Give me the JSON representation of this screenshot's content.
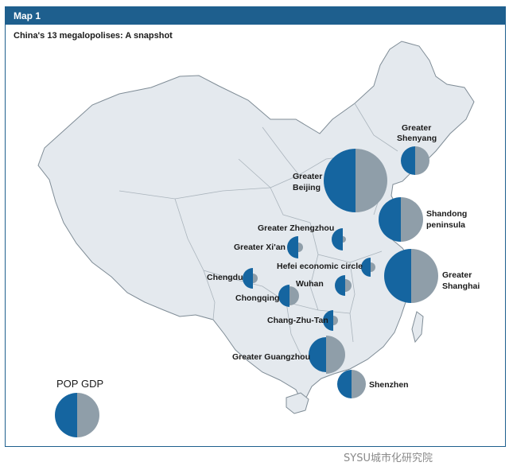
{
  "header": {
    "title": "Map 1",
    "subtitle": "China's 13 megalopolises: A snapshot"
  },
  "colors": {
    "pop": "#1565a0",
    "gdp": "#8f9ea9",
    "land": "#e4e9ee",
    "border": "#9aa6b0",
    "header": "#1e5f8e"
  },
  "legend": {
    "pop_label": "POP",
    "gdp_label": "GDP"
  },
  "regions": [
    {
      "id": "greater-shenyang",
      "label_lines": [
        "Greater",
        "Shenyang"
      ]
    },
    {
      "id": "greater-beijing",
      "label_lines": [
        "Greater",
        "Beijing"
      ]
    },
    {
      "id": "shandong-peninsula",
      "label_lines": [
        "Shandong",
        "peninsula"
      ]
    },
    {
      "id": "greater-zhengzhou",
      "label_lines": [
        "Greater Zhengzhou"
      ]
    },
    {
      "id": "greater-xian",
      "label_lines": [
        "Greater Xi'an"
      ]
    },
    {
      "id": "hefei-economic-circle",
      "label_lines": [
        "Hefei economic circle"
      ]
    },
    {
      "id": "greater-shanghai",
      "label_lines": [
        "Greater",
        "Shanghai"
      ]
    },
    {
      "id": "chengdu",
      "label_lines": [
        "Chengdu"
      ]
    },
    {
      "id": "wuhan",
      "label_lines": [
        "Wuhan"
      ]
    },
    {
      "id": "chongqing",
      "label_lines": [
        "Chongqing"
      ]
    },
    {
      "id": "chang-zhu-tan",
      "label_lines": [
        "Chang-Zhu-Tan"
      ]
    },
    {
      "id": "greater-guangzhou",
      "label_lines": [
        "Greater Guangzhou"
      ]
    },
    {
      "id": "shenzhen",
      "label_lines": [
        "Shenzhen"
      ]
    }
  ],
  "watermark": "SYSU城市化研究院"
}
